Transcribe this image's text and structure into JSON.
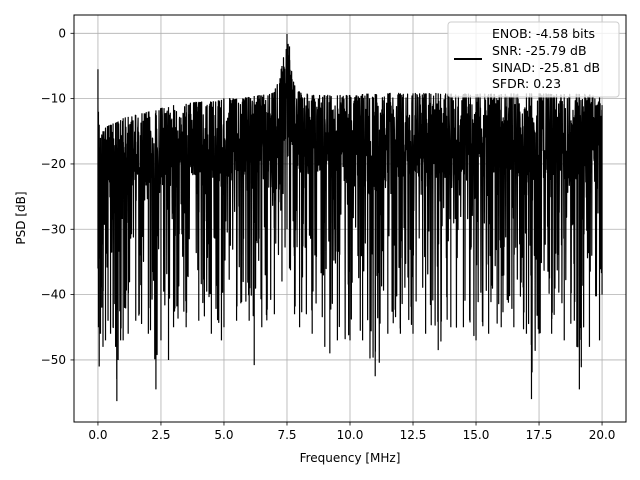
{
  "chart_data": {
    "type": "line",
    "xlabel": "Frequency [MHz]",
    "ylabel": "PSD [dB]",
    "xlim": [
      -0.95,
      20.95
    ],
    "ylim": [
      -59.5,
      2.8
    ],
    "xticks": [
      0.0,
      2.5,
      5.0,
      7.5,
      10.0,
      12.5,
      15.0,
      17.5,
      20.0
    ],
    "xtick_labels": [
      "0.0",
      "2.5",
      "5.0",
      "7.5",
      "10.0",
      "12.5",
      "15.0",
      "17.5",
      "20.0"
    ],
    "yticks": [
      0,
      -10,
      -20,
      -30,
      -40,
      -50
    ],
    "ytick_labels": [
      "0",
      "−10",
      "−20",
      "−30",
      "−40",
      "−50"
    ],
    "grid": true,
    "line_color": "#000000",
    "legend": {
      "placement": "top-right",
      "entries": [
        "ENOB: -4.58 bits",
        "SNR: -25.79 dB",
        "SINAD: -25.81 dB",
        "SFDR: 0.23"
      ]
    },
    "series": [
      {
        "x": [
          0.0,
          0.02,
          0.05,
          0.1,
          0.15,
          0.2,
          0.3,
          0.4,
          0.5,
          0.6,
          0.7,
          0.75,
          0.8,
          0.9,
          1.0,
          1.2,
          1.5,
          2.0,
          2.3,
          2.5,
          2.8,
          3.0,
          3.5,
          4.0,
          4.5,
          4.9,
          5.0,
          5.5,
          6.0,
          6.2,
          6.5,
          7.0,
          7.3,
          7.5,
          7.6,
          7.8,
          8.0,
          8.5,
          9.0,
          9.2,
          9.5,
          10.0,
          10.5,
          11.0,
          11.5,
          12.0,
          12.5,
          13.0,
          13.5,
          14.0,
          14.5,
          15.0,
          15.5,
          16.0,
          16.5,
          17.0,
          17.2,
          17.5,
          18.0,
          18.5,
          19.0,
          19.1,
          19.5,
          19.9,
          20.0
        ],
        "upper": [
          -5.5,
          -12.0,
          -14.0,
          -16.0,
          -15.5,
          -15.0,
          -14.5,
          -14.2,
          -14.0,
          -13.8,
          -13.7,
          -13.6,
          -13.5,
          -13.3,
          -13.0,
          -12.8,
          -12.5,
          -12.0,
          -11.8,
          -11.5,
          -11.3,
          -11.0,
          -10.8,
          -10.5,
          -10.5,
          -10.2,
          -10.0,
          -10.0,
          -9.8,
          -9.6,
          -9.5,
          -9.0,
          -5.0,
          -0.1,
          -2.0,
          -8.0,
          -9.0,
          -9.5,
          -9.5,
          -9.5,
          -9.5,
          -9.5,
          -9.3,
          -9.3,
          -9.2,
          -9.2,
          -9.2,
          -9.2,
          -9.2,
          -9.3,
          -9.3,
          -9.3,
          -9.3,
          -9.3,
          -9.2,
          -9.2,
          -9.2,
          -9.2,
          -9.3,
          -9.3,
          -9.3,
          -9.3,
          -9.4,
          -9.8,
          -11.0
        ],
        "lower": [
          -36.0,
          -45.0,
          -51.0,
          -46.0,
          -42.0,
          -48.0,
          -47.0,
          -44.0,
          -46.0,
          -45.0,
          -48.0,
          -56.3,
          -50.0,
          -47.0,
          -47.0,
          -46.0,
          -44.0,
          -46.0,
          -54.5,
          -47.0,
          -50.0,
          -45.0,
          -45.0,
          -44.0,
          -46.0,
          -47.0,
          -45.0,
          -44.0,
          -44.0,
          -50.8,
          -45.0,
          -43.0,
          -38.0,
          -30.0,
          -36.0,
          -43.0,
          -45.0,
          -46.0,
          -48.0,
          -49.0,
          -47.0,
          -47.0,
          -47.0,
          -52.5,
          -46.0,
          -46.0,
          -46.0,
          -46.0,
          -48.5,
          -45.0,
          -45.0,
          -47.0,
          -46.0,
          -45.0,
          -45.0,
          -46.0,
          -56.0,
          -46.0,
          -46.0,
          -47.0,
          -48.0,
          -54.5,
          -48.0,
          -47.0,
          -40.0
        ]
      }
    ]
  }
}
